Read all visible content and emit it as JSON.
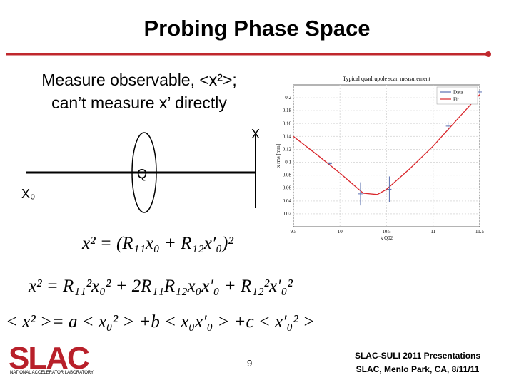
{
  "header": {
    "title": "Probing Phase Space"
  },
  "text": {
    "line1": "Measure observable, <x²>;",
    "line2": "can’t measure x’ directly"
  },
  "diagram": {
    "screen_label": "X",
    "quad_label": "Q",
    "start_label": "X₀"
  },
  "equations": [
    "x² = (R₁₁x₀ + R₁₂x′₀)²",
    "x² = R₁₁²x₀² + 2R₁₁R₁₂x₀x′₀ + R₁₂²x′₀²",
    "< x² >= a < x₀² > +b < x₀x′₀ > +c < x′₀² >"
  ],
  "plot": {
    "type": "scatter",
    "title": "Typical quadrupole scan measurement",
    "x_label": "k Q02",
    "y_label": "x rms [mm]",
    "xlim": [
      9.5,
      11.5
    ],
    "ylim": [
      0,
      0.22
    ],
    "xticks": [
      9.5,
      10,
      10.5,
      11,
      11.5
    ],
    "yticks": [
      0.02,
      0.04,
      0.06,
      0.08,
      0.1,
      0.12,
      0.14,
      0.16,
      0.18,
      0.2
    ],
    "series": [
      {
        "name": "Data",
        "color": "#5b6fb0",
        "x": [
          9.89,
          10.22,
          10.53,
          11.16,
          11.5
        ],
        "values": [
          0.098,
          0.051,
          0.058,
          0.156,
          0.209
        ],
        "errors": [
          0.002,
          0.018,
          0.02,
          0.007,
          0.003
        ]
      },
      {
        "name": "Fit",
        "color": "#d9262b",
        "x": [
          9.5,
          9.75,
          10,
          10.25,
          10.4,
          10.5,
          10.75,
          11,
          11.25,
          11.5
        ],
        "values": [
          0.14,
          0.112,
          0.083,
          0.052,
          0.05,
          0.058,
          0.09,
          0.125,
          0.165,
          0.205
        ]
      }
    ],
    "legend": "upper right"
  },
  "footer": {
    "logo": "SLAC",
    "logo_sub": "NATIONAL ACCELERATOR LABORATORY",
    "page": "9",
    "line1": "SLAC-SULI 2011 Presentations",
    "line2": "SLAC, Menlo Park, CA, 8/11/11"
  }
}
